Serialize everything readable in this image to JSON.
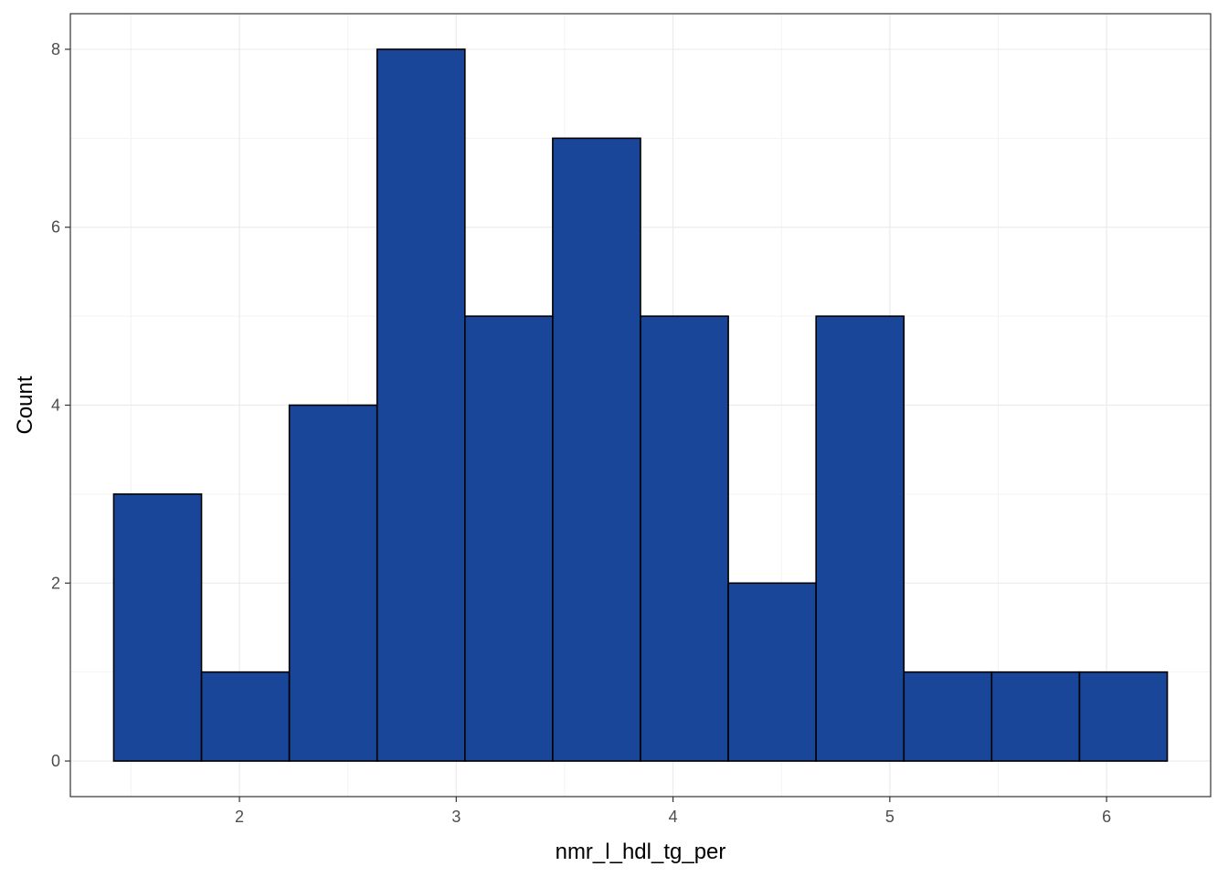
{
  "colors": {
    "bar_fill": "#1a4699",
    "bar_stroke": "#000000",
    "grid_major": "#ebebeb",
    "grid_minor": "#f3f3f3",
    "panel_border": "#333333",
    "tick_text": "#4d4d4d"
  },
  "chart_data": {
    "type": "bar",
    "subtype": "histogram",
    "title": "",
    "xlabel": "nmr_l_hdl_tg_per",
    "ylabel": "Count",
    "xlim": [
      1.22,
      6.48
    ],
    "ylim": [
      -0.4,
      8.4
    ],
    "x_ticks": [
      2,
      3,
      4,
      5,
      6
    ],
    "y_ticks": [
      0,
      2,
      4,
      6,
      8
    ],
    "x_tick_labels": [
      "2",
      "3",
      "4",
      "5",
      "6"
    ],
    "y_tick_labels": [
      "0",
      "2",
      "4",
      "6",
      "8"
    ],
    "grid": true,
    "bins": [
      {
        "x0": 1.42,
        "x1": 1.825,
        "count": 3
      },
      {
        "x0": 1.825,
        "x1": 2.23,
        "count": 1
      },
      {
        "x0": 2.23,
        "x1": 2.635,
        "count": 4
      },
      {
        "x0": 2.635,
        "x1": 3.04,
        "count": 8
      },
      {
        "x0": 3.04,
        "x1": 3.445,
        "count": 5
      },
      {
        "x0": 3.445,
        "x1": 3.85,
        "count": 7
      },
      {
        "x0": 3.85,
        "x1": 4.255,
        "count": 5
      },
      {
        "x0": 4.255,
        "x1": 4.66,
        "count": 2
      },
      {
        "x0": 4.66,
        "x1": 5.065,
        "count": 5
      },
      {
        "x0": 5.065,
        "x1": 5.47,
        "count": 1
      },
      {
        "x0": 5.47,
        "x1": 5.875,
        "count": 1
      },
      {
        "x0": 5.875,
        "x1": 6.28,
        "count": 1
      }
    ]
  }
}
